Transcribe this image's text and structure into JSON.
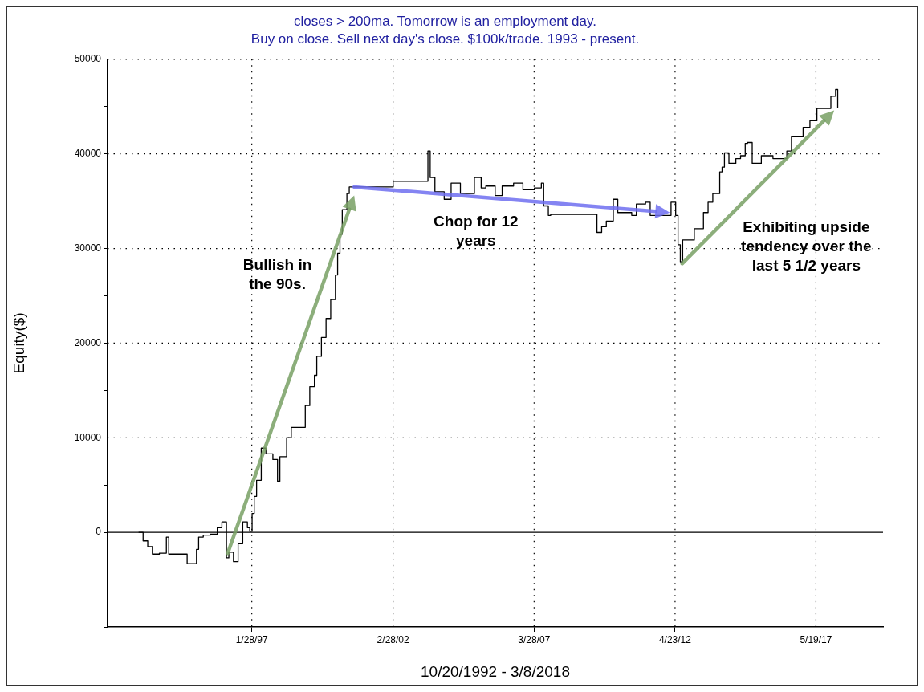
{
  "chart_data": {
    "type": "step",
    "title": "closes > 200ma. Tomorrow is an employment day.",
    "subtitle": "Buy on close. Sell next day's close. $100k/trade. 1993 - present.",
    "xlabel": "10/20/1992 - 3/8/2018",
    "ylabel": "Equity($)",
    "xlim": [
      "1991-11-20",
      "2019-10-18"
    ],
    "xticks": [
      {
        "value": "1997-01-28",
        "label": "1/28/97"
      },
      {
        "value": "2002-02-28",
        "label": "2/28/02"
      },
      {
        "value": "2007-03-28",
        "label": "3/28/07"
      },
      {
        "value": "2012-04-23",
        "label": "4/23/12"
      },
      {
        "value": "2017-05-19",
        "label": "5/19/17"
      }
    ],
    "ylim": [
      -10000,
      50000
    ],
    "yticks": [
      {
        "value": -10000,
        "label": null
      },
      {
        "value": -5000,
        "label": null
      },
      0,
      {
        "value": 5000,
        "label": null
      },
      10000,
      {
        "value": 15000,
        "label": null
      },
      20000,
      {
        "value": 25000,
        "label": null
      },
      30000,
      {
        "value": 35000,
        "label": null
      },
      40000,
      {
        "value": 45000,
        "label": null
      },
      50000
    ],
    "grid": true,
    "legend": false,
    "marker": "none",
    "line_style": "solid",
    "x": [
      "1993-01",
      "1993-03",
      "1993-05",
      "1993-07",
      "1993-10",
      "1994-01",
      "1994-02",
      "1994-09",
      "1994-10",
      "1995-01",
      "1995-02",
      "1995-03",
      "1995-05",
      "1995-08",
      "1995-11",
      "1996-01",
      "1996-03",
      "1996-04",
      "1996-06",
      "1996-07",
      "1996-08",
      "1996-10",
      "1996-12",
      "1997-01",
      "1997-02",
      "1997-03",
      "1997-04",
      "1997-06",
      "1997-08",
      "1997-11",
      "1998-01",
      "1998-02",
      "1998-05",
      "1998-07",
      "1998-11",
      "1999-01",
      "1999-03",
      "1999-05",
      "1999-06",
      "1999-08",
      "1999-10",
      "1999-12",
      "2000-02",
      "2000-03",
      "2000-04",
      "2000-05",
      "2000-07",
      "2000-08",
      "2002-02",
      "2002-03",
      "2003-05",
      "2003-06",
      "2003-07",
      "2003-09",
      "2004-01",
      "2004-04",
      "2004-08",
      "2005-02",
      "2005-05",
      "2005-07",
      "2005-11",
      "2006-02",
      "2006-07",
      "2006-11",
      "2007-04",
      "2007-07",
      "2007-08",
      "2007-10",
      "2007-11",
      "2009-05",
      "2009-07",
      "2009-09",
      "2009-11",
      "2010-02",
      "2010-04",
      "2010-08",
      "2010-10",
      "2010-12",
      "2011-04",
      "2011-06",
      "2012-01",
      "2012-03",
      "2012-05",
      "2012-06",
      "2012-07",
      "2012-08",
      "2012-12",
      "2013-01",
      "2013-03",
      "2013-05",
      "2013-07",
      "2013-09",
      "2013-12",
      "2014-01",
      "2014-02",
      "2014-04",
      "2014-07",
      "2014-09",
      "2014-11",
      "2014-12",
      "2015-02",
      "2015-06",
      "2015-11",
      "2016-03",
      "2016-05",
      "2016-07",
      "2016-12",
      "2017-03",
      "2017-06",
      "2017-12",
      "2018-02",
      "2018-03"
    ],
    "series": [
      {
        "color": "#000000",
        "values": [
          0,
          -900,
          -1500,
          -2300,
          -2200,
          -500,
          -2300,
          -2300,
          -3300,
          -3300,
          -1800,
          -500,
          -300,
          -200,
          500,
          1100,
          -2700,
          -2100,
          -3100,
          -3100,
          -1200,
          1100,
          500,
          100,
          2000,
          3800,
          5500,
          8900,
          8300,
          7700,
          5400,
          8000,
          10000,
          11100,
          11100,
          13400,
          15400,
          16600,
          18600,
          20600,
          22600,
          24600,
          27200,
          29500,
          31500,
          34100,
          35800,
          36500,
          36500,
          37100,
          37100,
          40300,
          37500,
          36000,
          35200,
          36900,
          35800,
          37500,
          36400,
          36600,
          35600,
          36600,
          36900,
          36200,
          36400,
          36900,
          34500,
          33500,
          33600,
          33600,
          31700,
          32300,
          32900,
          35200,
          33800,
          33800,
          33500,
          34700,
          34900,
          33500,
          33500,
          34900,
          33500,
          30400,
          28600,
          30900,
          30900,
          32100,
          32100,
          33800,
          34900,
          35800,
          38100,
          38600,
          40100,
          39000,
          39500,
          39800,
          41100,
          41200,
          39000,
          39800,
          39500,
          39500,
          40300,
          41800,
          42800,
          43500,
          44800,
          46100,
          46800,
          44800
        ]
      }
    ],
    "annotations": [
      "Bullish in the 90s.",
      "Chop for 12 years",
      "Exhibiting upside tendency over the last 5 1/2 years"
    ]
  }
}
